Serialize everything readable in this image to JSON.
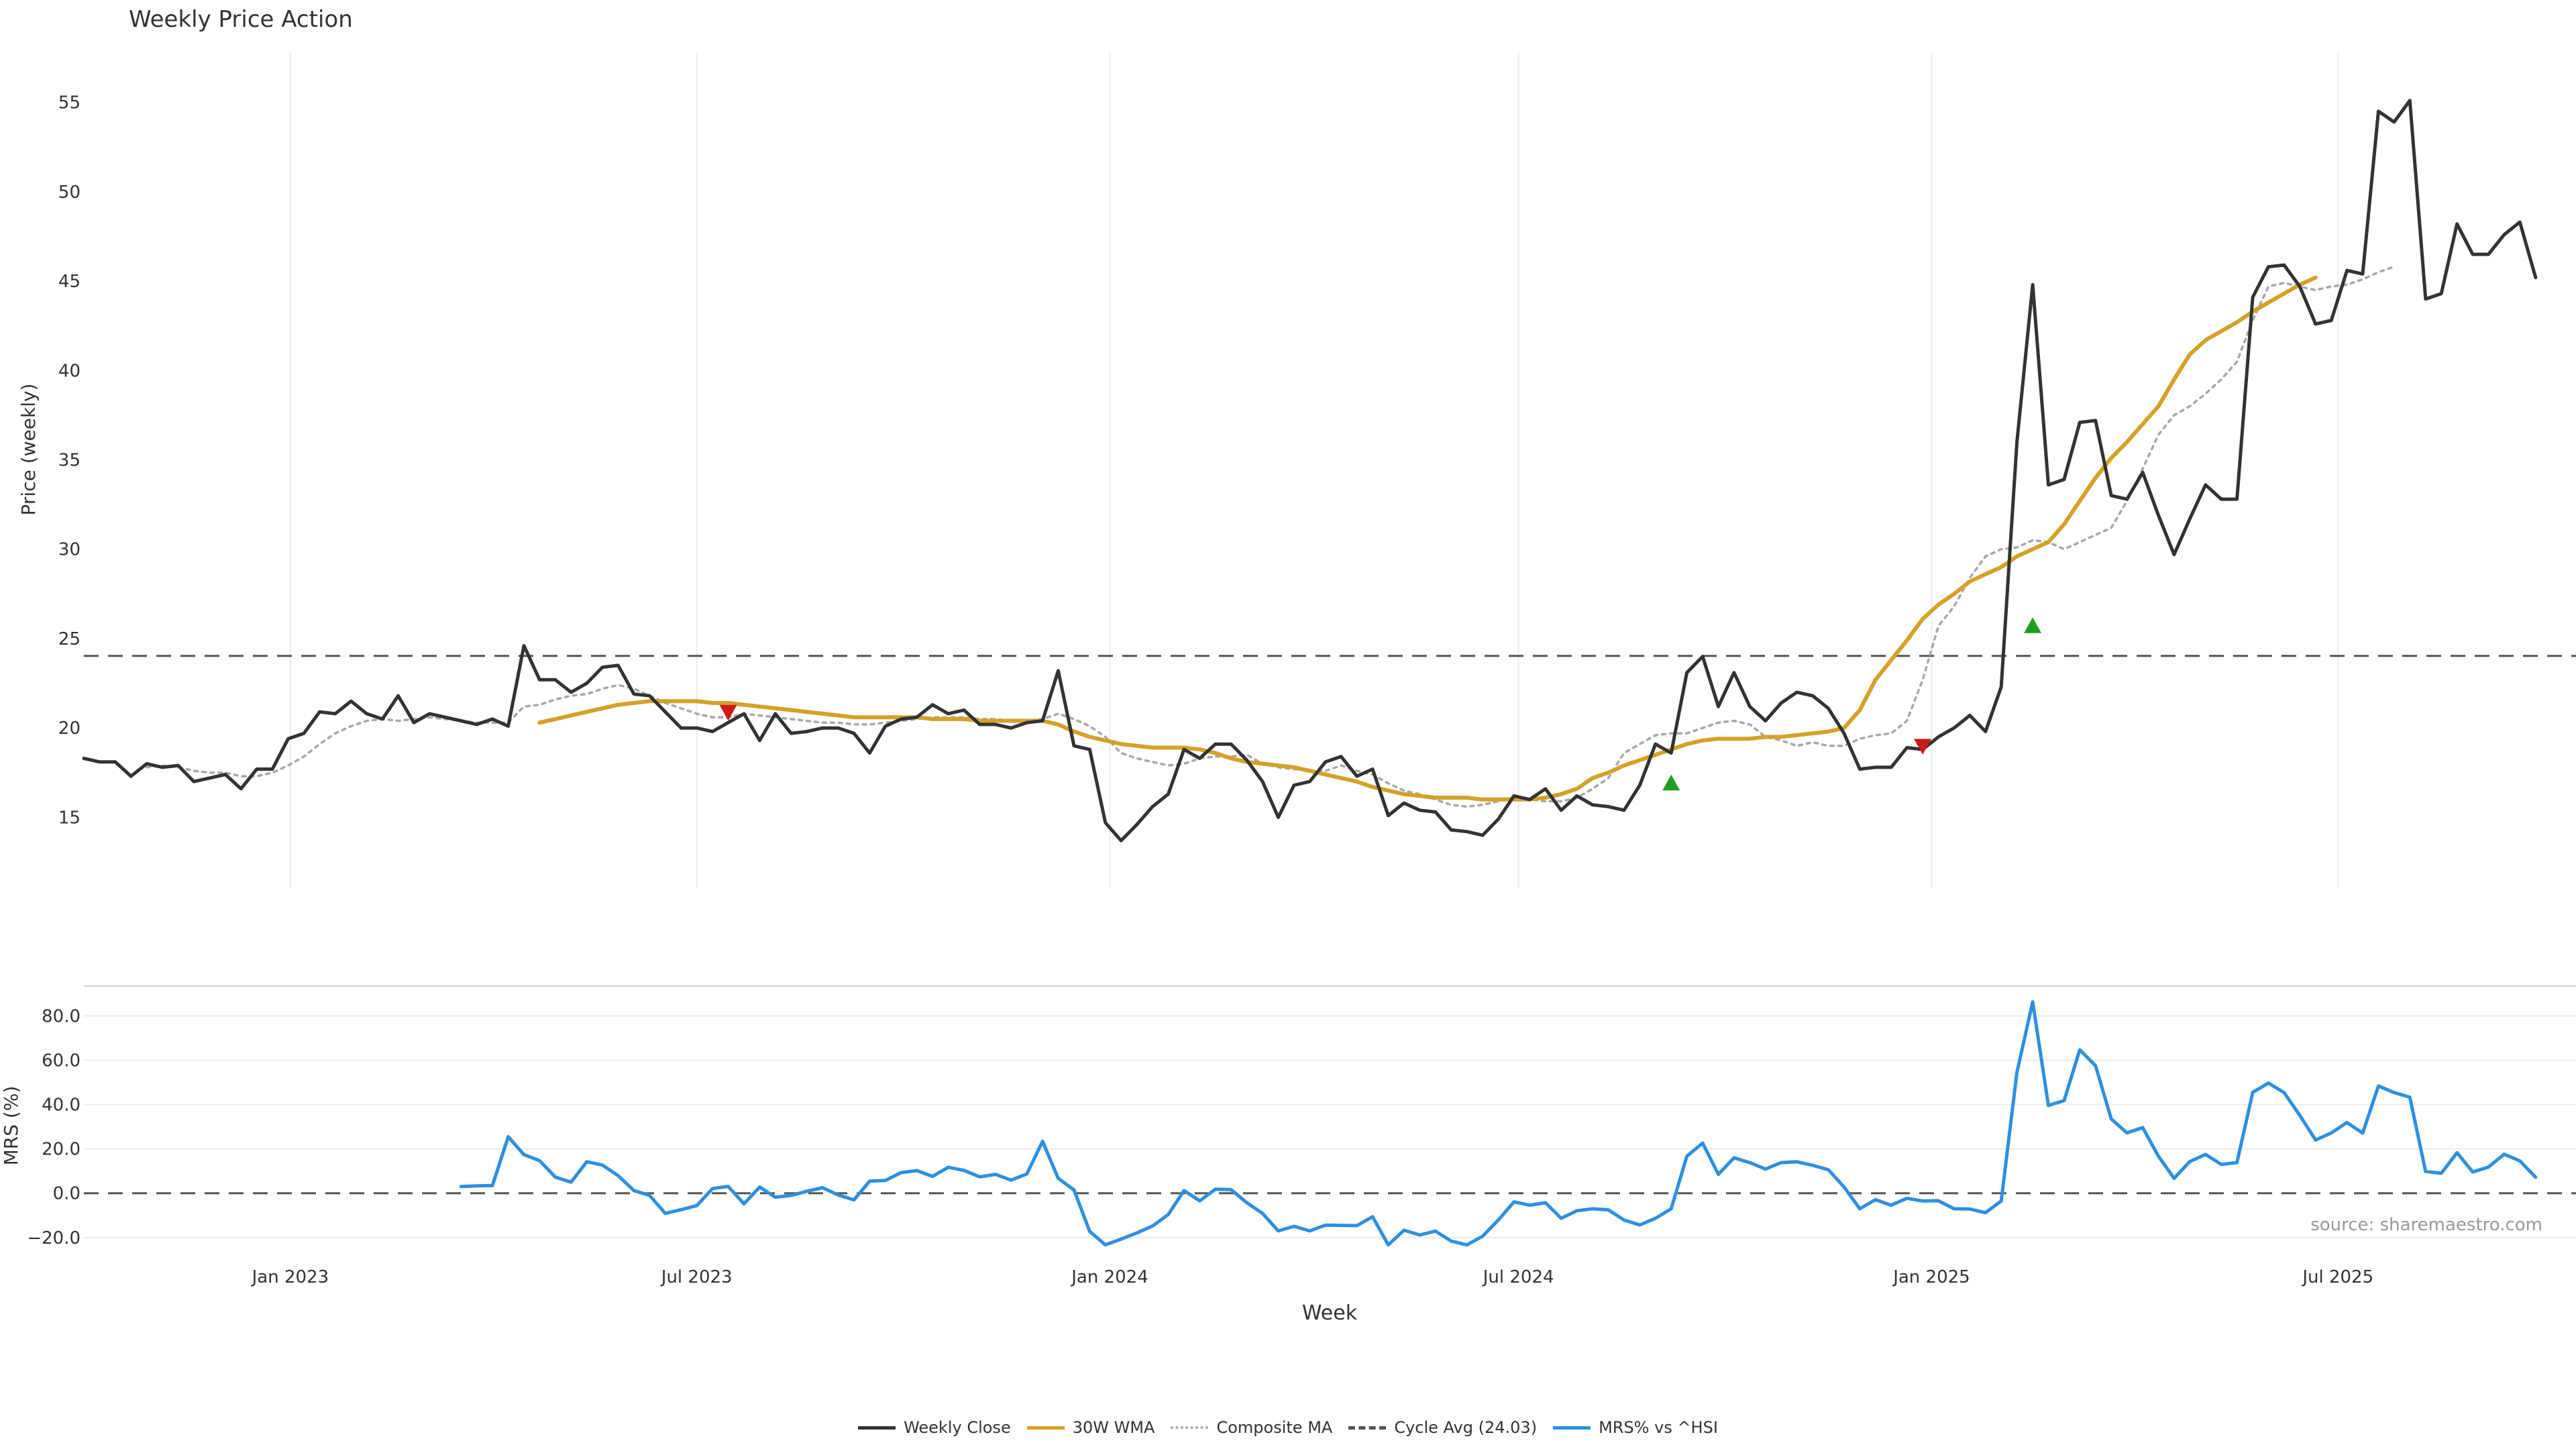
{
  "colors": {
    "close": "#333333",
    "wma": "#d4a228",
    "composite": "#a8a8a8",
    "cycle": "#555555",
    "mrs": "#2e8fe0",
    "signal_up": "#1e9e1e",
    "signal_down": "#cc1a1a",
    "grid": "#ececec"
  },
  "legend": {
    "close": "Weekly Close",
    "wma": "30W WMA",
    "composite": "Composite MA",
    "cycle": "Cycle Avg (24.03)",
    "mrs": "MRS% vs ^HSI"
  },
  "source_label": "source: sharemaestro.com",
  "chart_data": [
    {
      "type": "line",
      "title": "Weekly Price Action",
      "xlabel": "",
      "ylabel": "Price (weekly)",
      "yticks": [
        15,
        20,
        25,
        30,
        35,
        40,
        45,
        50,
        55
      ],
      "ylim": [
        11,
        57.8
      ],
      "xlim": [
        "2022-10-01",
        "2025-10-15"
      ],
      "xticks": [
        {
          "date": "2023-01-01",
          "label": "Jan 2023"
        },
        {
          "date": "2023-07-01",
          "label": "Jul 2023"
        },
        {
          "date": "2024-01-01",
          "label": "Jan 2024"
        },
        {
          "date": "2024-07-01",
          "label": "Jul 2024"
        },
        {
          "date": "2025-01-01",
          "label": "Jan 2025"
        },
        {
          "date": "2025-07-01",
          "label": "Jul 2025"
        }
      ],
      "grid": "vertical",
      "start_date": "2022-10-01",
      "interval_days": 7,
      "series": [
        {
          "key": "close",
          "name": "Weekly Close",
          "values": [
            18.3,
            18.1,
            18.1,
            17.3,
            18.0,
            17.8,
            17.9,
            17.0,
            17.2,
            17.4,
            16.6,
            17.7,
            17.7,
            19.4,
            19.7,
            20.9,
            20.8,
            21.5,
            20.8,
            20.5,
            21.8,
            20.3,
            20.8,
            20.6,
            20.4,
            20.2,
            20.5,
            20.1,
            24.6,
            22.7,
            22.7,
            22.0,
            22.5,
            23.4,
            23.5,
            21.9,
            21.8,
            20.9,
            20.0,
            20.0,
            19.8,
            20.3,
            20.8,
            19.3,
            20.8,
            19.7,
            19.8,
            20.0,
            20.0,
            19.7,
            18.6,
            20.1,
            20.5,
            20.6,
            21.3,
            20.8,
            21.0,
            20.2,
            20.2,
            20.0,
            20.3,
            20.4,
            23.2,
            19.0,
            18.8,
            14.7,
            13.7,
            14.6,
            15.6,
            16.3,
            18.8,
            18.3,
            19.1,
            19.1,
            18.2,
            17.0,
            15.0,
            16.8,
            17.0,
            18.1,
            18.4,
            17.3,
            17.7,
            15.1,
            15.8,
            15.4,
            15.3,
            14.3,
            14.2,
            14.0,
            14.9,
            16.2,
            16.0,
            16.6,
            15.4,
            16.2,
            15.7,
            15.6,
            15.4,
            16.8,
            19.1,
            18.6,
            23.1,
            24.0,
            21.2,
            23.1,
            21.2,
            20.4,
            21.4,
            22.0,
            21.8,
            21.1,
            19.7,
            17.7,
            17.8,
            17.8,
            18.9,
            18.8,
            19.5,
            20.0,
            20.7,
            19.8,
            22.3,
            36.0,
            44.8,
            33.6,
            33.9,
            37.1,
            37.2,
            33.0,
            32.8,
            34.3,
            31.9,
            29.7,
            31.7,
            33.6,
            32.8,
            32.8,
            44.1,
            45.8,
            45.9,
            44.7,
            42.6,
            42.8,
            45.6,
            45.4,
            54.5,
            53.9,
            55.1,
            44.0,
            44.3,
            48.2,
            46.5,
            46.5,
            47.6,
            48.3,
            45.2
          ]
        },
        {
          "key": "wma",
          "name": "30W WMA",
          "start_index": 29,
          "values": [
            20.3,
            20.5,
            20.7,
            20.9,
            21.1,
            21.3,
            21.4,
            21.5,
            21.5,
            21.5,
            21.5,
            21.4,
            21.4,
            21.3,
            21.2,
            21.1,
            21.0,
            20.9,
            20.8,
            20.7,
            20.6,
            20.6,
            20.6,
            20.6,
            20.6,
            20.5,
            20.5,
            20.5,
            20.4,
            20.4,
            20.4,
            20.4,
            20.4,
            20.2,
            19.8,
            19.5,
            19.3,
            19.1,
            19.0,
            18.9,
            18.9,
            18.9,
            18.8,
            18.6,
            18.3,
            18.1,
            18.0,
            17.9,
            17.8,
            17.6,
            17.4,
            17.2,
            17.0,
            16.7,
            16.5,
            16.3,
            16.2,
            16.1,
            16.1,
            16.1,
            16.0,
            16.0,
            16.0,
            16.0,
            16.1,
            16.3,
            16.6,
            17.2,
            17.5,
            17.9,
            18.2,
            18.5,
            18.8,
            19.1,
            19.3,
            19.4,
            19.4,
            19.4,
            19.5,
            19.5,
            19.6,
            19.7,
            19.8,
            20.0,
            21.0,
            22.7,
            23.8,
            24.9,
            26.1,
            26.9,
            27.5,
            28.2,
            28.6,
            29.0,
            29.6,
            30.0,
            30.4,
            31.4,
            32.7,
            34.0,
            35.1,
            36.0,
            37.0,
            38.0,
            39.5,
            40.9,
            41.7,
            42.2,
            42.7,
            43.3,
            43.8,
            44.3,
            44.8,
            45.2
          ]
        },
        {
          "key": "composite",
          "name": "Composite MA",
          "start_index": 4,
          "values": [
            17.8,
            17.9,
            17.8,
            17.6,
            17.5,
            17.5,
            17.3,
            17.3,
            17.5,
            17.9,
            18.4,
            19.1,
            19.7,
            20.1,
            20.4,
            20.5,
            20.4,
            20.5,
            20.6,
            20.5,
            20.4,
            20.3,
            20.3,
            20.3,
            21.2,
            21.3,
            21.6,
            21.8,
            21.9,
            22.2,
            22.4,
            22.2,
            21.8,
            21.4,
            21.1,
            20.8,
            20.6,
            20.6,
            20.8,
            20.7,
            20.6,
            20.5,
            20.4,
            20.3,
            20.3,
            20.2,
            20.2,
            20.3,
            20.4,
            20.5,
            20.6,
            20.6,
            20.6,
            20.5,
            20.5,
            20.4,
            20.4,
            20.5,
            20.8,
            20.5,
            20.1,
            19.5,
            18.6,
            18.3,
            18.1,
            17.9,
            18.0,
            18.3,
            18.4,
            18.4,
            18.5,
            18.0,
            17.8,
            17.7,
            17.6,
            17.6,
            17.9,
            17.6,
            17.4,
            16.9,
            16.5,
            16.3,
            16.0,
            15.7,
            15.6,
            15.7,
            15.9,
            16.1,
            16.0,
            15.9,
            15.9,
            16.1,
            16.6,
            17.2,
            18.6,
            19.1,
            19.6,
            19.7,
            19.7,
            20.0,
            20.3,
            20.4,
            20.2,
            19.5,
            19.3,
            19.0,
            19.2,
            19.0,
            19.0,
            19.4,
            19.6,
            19.7,
            20.4,
            22.7,
            25.7,
            26.8,
            28.4,
            29.6,
            30.0,
            30.1,
            30.5,
            30.4,
            30.0,
            30.4,
            30.8,
            31.2,
            32.7,
            34.5,
            36.4,
            37.5,
            38.0,
            38.7,
            39.5,
            40.5,
            42.8,
            44.7,
            44.9,
            44.7,
            44.5,
            44.7,
            44.8,
            45.1,
            45.5,
            45.8
          ]
        },
        {
          "key": "cycle",
          "name": "Cycle Avg (24.03)",
          "constant": 24.03
        }
      ],
      "signals": [
        {
          "index": 41,
          "value": 20.9,
          "direction": "down"
        },
        {
          "index": 101,
          "value": 16.9,
          "direction": "up"
        },
        {
          "index": 117,
          "value": 19.0,
          "direction": "down"
        },
        {
          "index": 124,
          "value": 25.7,
          "direction": "up"
        }
      ]
    },
    {
      "type": "line",
      "title": "",
      "xlabel": "Week",
      "ylabel": "MRS (%)",
      "yticks": [
        -20,
        0,
        20,
        40,
        60,
        80
      ],
      "ytick_labels": [
        "−20.0",
        "0.0",
        "20.0",
        "40.0",
        "60.0",
        "80.0"
      ],
      "ylim": [
        -25.5,
        91
      ],
      "grid": "horizontal",
      "zero_line": 0,
      "series": [
        {
          "key": "mrs",
          "name": "MRS% vs ^HSI",
          "start_index": 24,
          "values": [
            3.0,
            3.3,
            3.5,
            25.5,
            17.4,
            14.7,
            7.3,
            5.0,
            14.2,
            12.7,
            7.9,
            1.2,
            -1.0,
            -9.1,
            -7.4,
            -5.6,
            2.1,
            3.1,
            -4.8,
            2.8,
            -1.8,
            -1.0,
            0.9,
            2.5,
            -0.8,
            -3.0,
            5.5,
            5.8,
            9.3,
            10.2,
            7.6,
            11.7,
            10.3,
            7.4,
            8.5,
            5.9,
            8.7,
            23.4,
            6.7,
            1.5,
            -17.2,
            -23.3,
            -20.7,
            -17.9,
            -14.8,
            -9.6,
            1.2,
            -3.4,
            1.8,
            1.6,
            -4.3,
            -9.1,
            -17.0,
            -14.9,
            -17.0,
            -14.4,
            -14.5,
            -14.6,
            -10.6,
            -23.3,
            -16.7,
            -18.8,
            -17.1,
            -21.6,
            -23.3,
            -19.4,
            -12.1,
            -3.9,
            -5.4,
            -4.3,
            -11.3,
            -7.9,
            -7.0,
            -7.5,
            -12.1,
            -14.3,
            -11.3,
            -7.0,
            16.7,
            22.6,
            8.5,
            16.0,
            13.8,
            10.9,
            13.8,
            14.2,
            12.6,
            10.6,
            2.8,
            -7.0,
            -2.9,
            -5.4,
            -2.3,
            -3.5,
            -3.4,
            -7.0,
            -7.1,
            -8.8,
            -3.5,
            54.5,
            86.3,
            39.6,
            41.8,
            64.7,
            57.5,
            33.5,
            27.2,
            29.6,
            16.7,
            6.7,
            14.3,
            17.5,
            13.0,
            13.8,
            45.5,
            49.7,
            45.4,
            35.1,
            24.0,
            27.2,
            31.9,
            27.1,
            48.4,
            45.4,
            43.3,
            9.8,
            9.0,
            18.3,
            9.6,
            11.8,
            17.6,
            14.6,
            7.2
          ]
        }
      ]
    }
  ]
}
